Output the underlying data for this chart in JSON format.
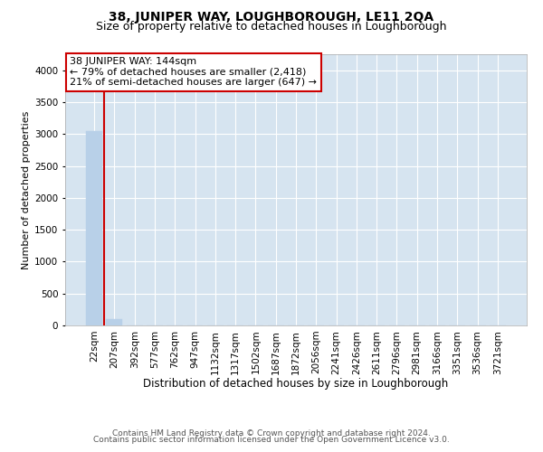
{
  "title": "38, JUNIPER WAY, LOUGHBOROUGH, LE11 2QA",
  "subtitle": "Size of property relative to detached houses in Loughborough",
  "xlabel": "Distribution of detached houses by size in Loughborough",
  "ylabel": "Number of detached properties",
  "footer_line1": "Contains HM Land Registry data © Crown copyright and database right 2024.",
  "footer_line2": "Contains public sector information licensed under the Open Government Licence v3.0.",
  "categories": [
    "22sqm",
    "207sqm",
    "392sqm",
    "577sqm",
    "762sqm",
    "947sqm",
    "1132sqm",
    "1317sqm",
    "1502sqm",
    "1687sqm",
    "1872sqm",
    "2056sqm",
    "2241sqm",
    "2426sqm",
    "2611sqm",
    "2796sqm",
    "2981sqm",
    "3166sqm",
    "3351sqm",
    "3536sqm",
    "3721sqm"
  ],
  "bar_values": [
    3050,
    100,
    5,
    2,
    1,
    1,
    0,
    0,
    0,
    0,
    0,
    0,
    0,
    0,
    0,
    0,
    0,
    0,
    0,
    0,
    0
  ],
  "bar_color": "#b8d0e8",
  "bar_edge_color": "#b8d0e8",
  "line_color": "#cc0000",
  "annotation_line1": "38 JUNIPER WAY: 144sqm",
  "annotation_line2": "← 79% of detached houses are smaller (2,418)",
  "annotation_line3": "21% of semi-detached houses are larger (647) →",
  "annotation_box_color": "#ffffff",
  "annotation_border_color": "#cc0000",
  "ylim": [
    0,
    4250
  ],
  "yticks": [
    0,
    500,
    1000,
    1500,
    2000,
    2500,
    3000,
    3500,
    4000
  ],
  "plot_bg_color": "#d6e4f0",
  "grid_color": "#ffffff",
  "title_fontsize": 10,
  "subtitle_fontsize": 9,
  "xlabel_fontsize": 8.5,
  "ylabel_fontsize": 8,
  "tick_fontsize": 7.5,
  "annot_fontsize": 8,
  "footer_fontsize": 6.5
}
